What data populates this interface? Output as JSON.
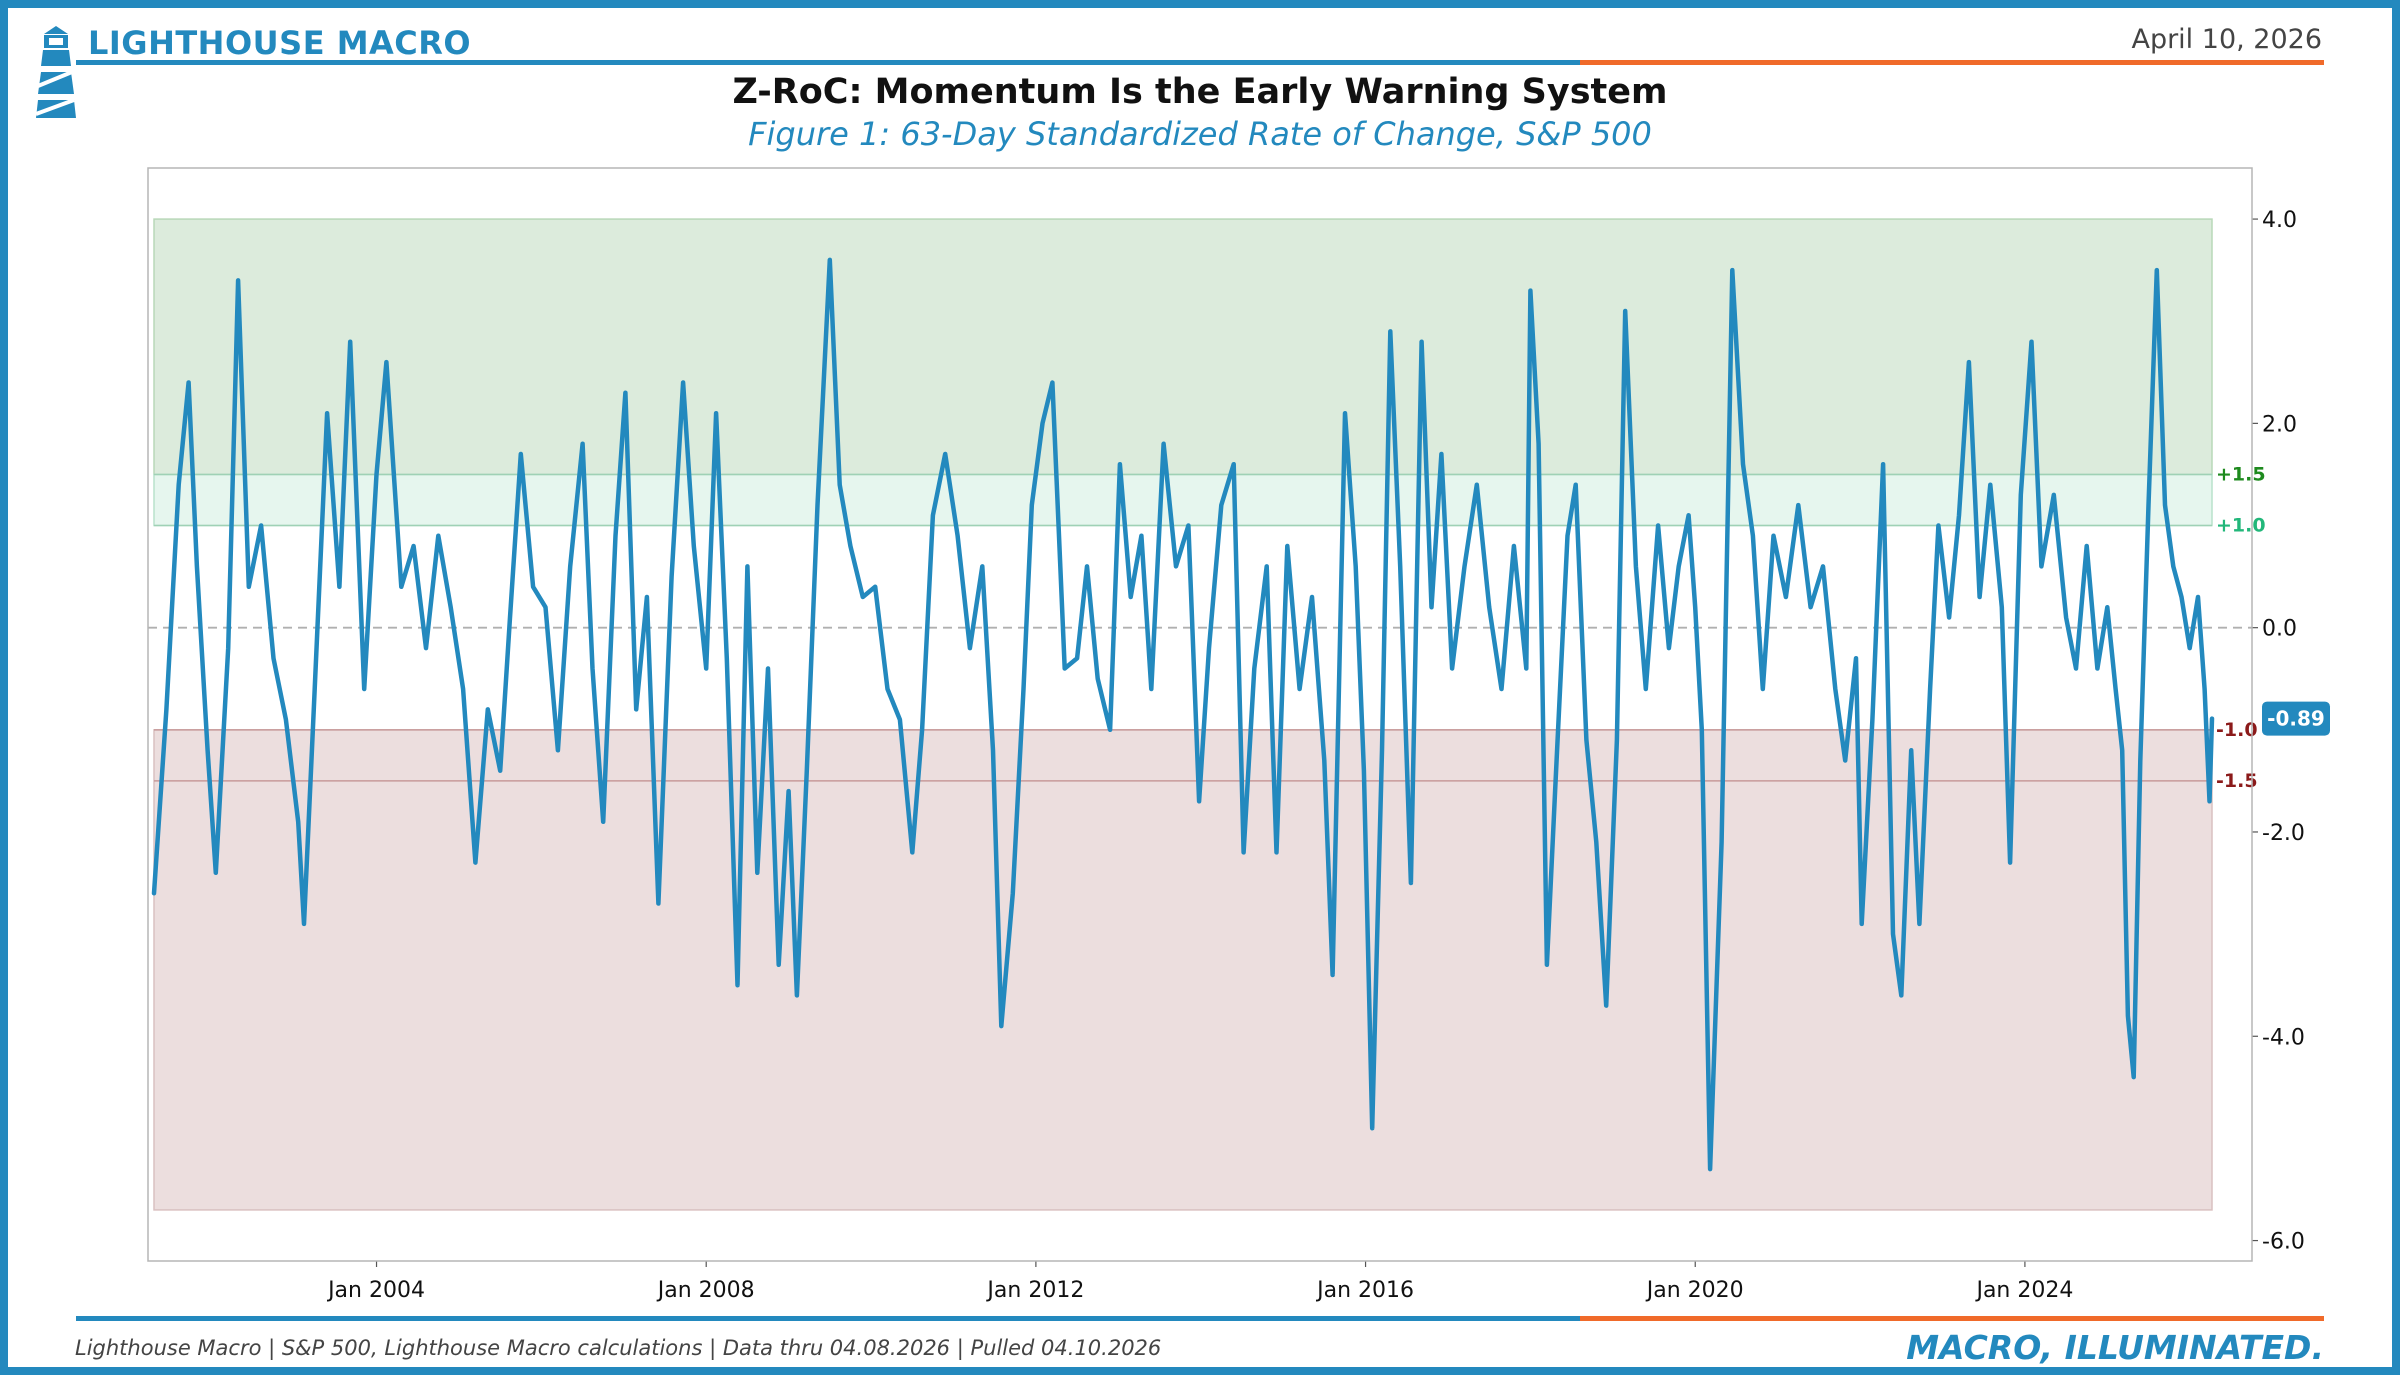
{
  "header": {
    "brand": "LIGHTHOUSE MACRO",
    "date": "April 10, 2026",
    "title": "Z-RoC: Momentum Is the Early Warning System",
    "subtitle": "Figure 1: 63-Day Standardized Rate of Change, S&P 500"
  },
  "footer": {
    "source": "Lighthouse Macro | S&P 500, Lighthouse Macro calculations | Data thru 04.08.2026 | Pulled 04.10.2026",
    "tagline": "MACRO, ILLUMINATED."
  },
  "colors": {
    "brand_blue": "#2389be",
    "accent_orange": "#f06a2a",
    "series": "#2389be",
    "bull_zone": "#dcebdc",
    "bull_inner_zone": "#e6f6ee",
    "bear_zone": "#ecdede",
    "green_label": "#1e8a1e",
    "teal_label": "#22b77a",
    "red_label": "#8b1a1a"
  },
  "icons": {
    "logo": "lighthouse-icon"
  },
  "chart_data": {
    "type": "line",
    "series": [
      {
        "name": "Z-RoC 63-Day (S&P 500)",
        "color": "#2389be"
      }
    ],
    "x_range": [
      2001.3,
      2026.27
    ],
    "ylim": [
      -6.2,
      4.5
    ],
    "yticks": [
      4.0,
      2.0,
      0.0,
      -2.0,
      -4.0,
      -6.0
    ],
    "ytick_labels": [
      "4.0",
      "2.0",
      "0.0",
      "-2.0",
      "-4.0",
      "-6.0"
    ],
    "xticks": [
      2004,
      2008,
      2012,
      2016,
      2020,
      2024
    ],
    "xtick_labels": [
      "Jan 2004",
      "Jan 2008",
      "Jan 2012",
      "Jan 2016",
      "Jan 2020",
      "Jan 2024"
    ],
    "zones": [
      {
        "name": "bull",
        "from": 1.5,
        "to": 4.0
      },
      {
        "name": "bull-inner",
        "from": 1.0,
        "to": 1.5
      },
      {
        "name": "bear",
        "from": -5.7,
        "to": -1.0
      }
    ],
    "thresholds": [
      {
        "value": 1.5,
        "label": "+1.5",
        "color": "#1e8a1e"
      },
      {
        "value": 1.0,
        "label": "+1.0",
        "color": "#22b77a"
      },
      {
        "value": -1.0,
        "label": "-1.0",
        "color": "#8b1a1a"
      },
      {
        "value": -1.5,
        "label": "-1.5",
        "color": "#8b1a1a"
      }
    ],
    "zero_line": 0.0,
    "last_value": -0.89,
    "last_value_label": "-0.89",
    "points": [
      [
        2001.3,
        -2.6
      ],
      [
        2001.45,
        -0.8
      ],
      [
        2001.6,
        1.4
      ],
      [
        2001.72,
        2.4
      ],
      [
        2001.82,
        0.6
      ],
      [
        2001.95,
        -1.2
      ],
      [
        2002.05,
        -2.4
      ],
      [
        2002.2,
        -0.2
      ],
      [
        2002.32,
        3.4
      ],
      [
        2002.45,
        0.4
      ],
      [
        2002.6,
        1.0
      ],
      [
        2002.75,
        -0.3
      ],
      [
        2002.9,
        -0.9
      ],
      [
        2003.05,
        -1.9
      ],
      [
        2003.12,
        -2.9
      ],
      [
        2003.25,
        -0.6
      ],
      [
        2003.4,
        2.1
      ],
      [
        2003.55,
        0.4
      ],
      [
        2003.68,
        2.8
      ],
      [
        2003.85,
        -0.6
      ],
      [
        2004.0,
        1.5
      ],
      [
        2004.12,
        2.6
      ],
      [
        2004.3,
        0.4
      ],
      [
        2004.45,
        0.8
      ],
      [
        2004.6,
        -0.2
      ],
      [
        2004.75,
        0.9
      ],
      [
        2004.9,
        0.2
      ],
      [
        2005.05,
        -0.6
      ],
      [
        2005.2,
        -2.3
      ],
      [
        2005.35,
        -0.8
      ],
      [
        2005.5,
        -1.4
      ],
      [
        2005.62,
        0.1
      ],
      [
        2005.75,
        1.7
      ],
      [
        2005.9,
        0.4
      ],
      [
        2006.05,
        0.2
      ],
      [
        2006.2,
        -1.2
      ],
      [
        2006.35,
        0.6
      ],
      [
        2006.5,
        1.8
      ],
      [
        2006.62,
        -0.4
      ],
      [
        2006.75,
        -1.9
      ],
      [
        2006.9,
        0.9
      ],
      [
        2007.02,
        2.3
      ],
      [
        2007.15,
        -0.8
      ],
      [
        2007.28,
        0.3
      ],
      [
        2007.42,
        -2.7
      ],
      [
        2007.58,
        0.5
      ],
      [
        2007.72,
        2.4
      ],
      [
        2007.85,
        0.8
      ],
      [
        2008.0,
        -0.4
      ],
      [
        2008.12,
        2.1
      ],
      [
        2008.25,
        -0.3
      ],
      [
        2008.38,
        -3.5
      ],
      [
        2008.5,
        0.6
      ],
      [
        2008.62,
        -2.4
      ],
      [
        2008.75,
        -0.4
      ],
      [
        2008.88,
        -3.3
      ],
      [
        2009.0,
        -1.6
      ],
      [
        2009.1,
        -3.6
      ],
      [
        2009.22,
        -1.4
      ],
      [
        2009.35,
        1.2
      ],
      [
        2009.5,
        3.6
      ],
      [
        2009.62,
        1.4
      ],
      [
        2009.75,
        0.8
      ],
      [
        2009.9,
        0.3
      ],
      [
        2010.05,
        0.4
      ],
      [
        2010.2,
        -0.6
      ],
      [
        2010.35,
        -0.9
      ],
      [
        2010.5,
        -2.2
      ],
      [
        2010.62,
        -1.0
      ],
      [
        2010.75,
        1.1
      ],
      [
        2010.9,
        1.7
      ],
      [
        2011.05,
        0.9
      ],
      [
        2011.2,
        -0.2
      ],
      [
        2011.35,
        0.6
      ],
      [
        2011.48,
        -1.2
      ],
      [
        2011.58,
        -3.9
      ],
      [
        2011.72,
        -2.6
      ],
      [
        2011.85,
        -0.6
      ],
      [
        2011.95,
        1.2
      ],
      [
        2012.08,
        2.0
      ],
      [
        2012.2,
        2.4
      ],
      [
        2012.35,
        -0.4
      ],
      [
        2012.5,
        -0.3
      ],
      [
        2012.62,
        0.6
      ],
      [
        2012.75,
        -0.5
      ],
      [
        2012.9,
        -1.0
      ],
      [
        2013.02,
        1.6
      ],
      [
        2013.15,
        0.3
      ],
      [
        2013.28,
        0.9
      ],
      [
        2013.4,
        -0.6
      ],
      [
        2013.55,
        1.8
      ],
      [
        2013.7,
        0.6
      ],
      [
        2013.85,
        1.0
      ],
      [
        2013.98,
        -1.7
      ],
      [
        2014.1,
        -0.2
      ],
      [
        2014.25,
        1.2
      ],
      [
        2014.4,
        1.6
      ],
      [
        2014.52,
        -2.2
      ],
      [
        2014.65,
        -0.4
      ],
      [
        2014.8,
        0.6
      ],
      [
        2014.92,
        -2.2
      ],
      [
        2015.05,
        0.8
      ],
      [
        2015.2,
        -0.6
      ],
      [
        2015.35,
        0.3
      ],
      [
        2015.5,
        -1.3
      ],
      [
        2015.6,
        -3.4
      ],
      [
        2015.75,
        2.1
      ],
      [
        2015.88,
        0.6
      ],
      [
        2015.98,
        -1.4
      ],
      [
        2016.08,
        -4.9
      ],
      [
        2016.2,
        -1.2
      ],
      [
        2016.3,
        2.9
      ],
      [
        2016.42,
        0.6
      ],
      [
        2016.55,
        -2.5
      ],
      [
        2016.68,
        2.8
      ],
      [
        2016.8,
        0.2
      ],
      [
        2016.92,
        1.7
      ],
      [
        2017.05,
        -0.4
      ],
      [
        2017.2,
        0.6
      ],
      [
        2017.35,
        1.4
      ],
      [
        2017.5,
        0.2
      ],
      [
        2017.65,
        -0.6
      ],
      [
        2017.8,
        0.8
      ],
      [
        2017.95,
        -0.4
      ],
      [
        2018.0,
        3.3
      ],
      [
        2018.1,
        1.8
      ],
      [
        2018.2,
        -3.3
      ],
      [
        2018.3,
        -1.6
      ],
      [
        2018.45,
        0.9
      ],
      [
        2018.55,
        1.4
      ],
      [
        2018.68,
        -1.1
      ],
      [
        2018.8,
        -2.1
      ],
      [
        2018.92,
        -3.7
      ],
      [
        2019.05,
        -1.1
      ],
      [
        2019.15,
        3.1
      ],
      [
        2019.28,
        0.6
      ],
      [
        2019.4,
        -0.6
      ],
      [
        2019.55,
        1.0
      ],
      [
        2019.68,
        -0.2
      ],
      [
        2019.8,
        0.6
      ],
      [
        2019.92,
        1.1
      ],
      [
        2020.0,
        0.2
      ],
      [
        2020.08,
        -1.0
      ],
      [
        2020.18,
        -5.3
      ],
      [
        2020.32,
        -2.1
      ],
      [
        2020.45,
        3.5
      ],
      [
        2020.58,
        1.6
      ],
      [
        2020.7,
        0.9
      ],
      [
        2020.82,
        -0.6
      ],
      [
        2020.95,
        0.9
      ],
      [
        2021.1,
        0.3
      ],
      [
        2021.25,
        1.2
      ],
      [
        2021.4,
        0.2
      ],
      [
        2021.55,
        0.6
      ],
      [
        2021.7,
        -0.6
      ],
      [
        2021.82,
        -1.3
      ],
      [
        2021.95,
        -0.3
      ],
      [
        2022.02,
        -2.9
      ],
      [
        2022.15,
        -0.9
      ],
      [
        2022.28,
        1.6
      ],
      [
        2022.4,
        -3.0
      ],
      [
        2022.5,
        -3.6
      ],
      [
        2022.62,
        -1.2
      ],
      [
        2022.72,
        -2.9
      ],
      [
        2022.85,
        -0.6
      ],
      [
        2022.95,
        1.0
      ],
      [
        2023.08,
        0.1
      ],
      [
        2023.2,
        1.1
      ],
      [
        2023.32,
        2.6
      ],
      [
        2023.45,
        0.3
      ],
      [
        2023.58,
        1.4
      ],
      [
        2023.72,
        0.2
      ],
      [
        2023.82,
        -2.3
      ],
      [
        2023.95,
        1.3
      ],
      [
        2024.08,
        2.8
      ],
      [
        2024.2,
        0.6
      ],
      [
        2024.35,
        1.3
      ],
      [
        2024.5,
        0.1
      ],
      [
        2024.62,
        -0.4
      ],
      [
        2024.75,
        0.8
      ],
      [
        2024.88,
        -0.4
      ],
      [
        2025.0,
        0.2
      ],
      [
        2025.1,
        -0.6
      ],
      [
        2025.18,
        -1.2
      ],
      [
        2025.25,
        -3.8
      ],
      [
        2025.32,
        -4.4
      ],
      [
        2025.4,
        -1.3
      ],
      [
        2025.5,
        1.2
      ],
      [
        2025.6,
        3.5
      ],
      [
        2025.7,
        1.2
      ],
      [
        2025.8,
        0.6
      ],
      [
        2025.9,
        0.3
      ],
      [
        2026.0,
        -0.2
      ],
      [
        2026.1,
        0.3
      ],
      [
        2026.18,
        -0.6
      ],
      [
        2026.24,
        -1.7
      ],
      [
        2026.27,
        -0.89
      ]
    ]
  }
}
